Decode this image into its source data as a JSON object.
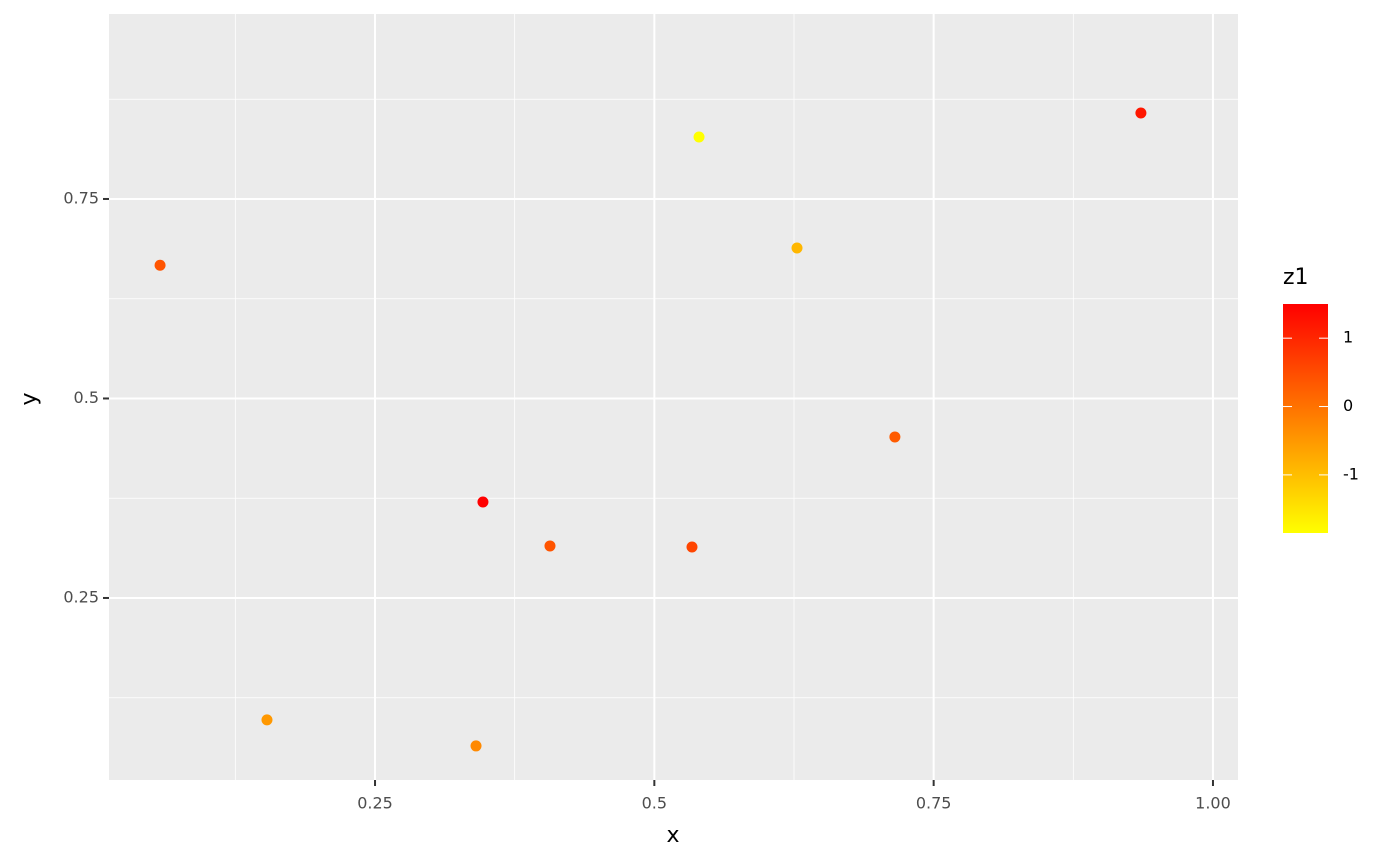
{
  "chart_data": {
    "type": "scatter",
    "x_label": "x",
    "y_label": "y",
    "x": [
      0.0576,
      0.1533,
      0.3404,
      0.3466,
      0.4066,
      0.5337,
      0.54,
      0.6277,
      0.7153,
      0.9355
    ],
    "values": [
      0.667,
      0.0972,
      0.0646,
      0.3703,
      0.3152,
      0.3139,
      0.8277,
      0.6886,
      0.4518,
      0.8578
    ],
    "z": [
      0.4,
      -0.5,
      -0.3,
      1.5,
      0.4,
      0.6,
      -1.85,
      -0.9,
      0.3,
      1.2
    ],
    "xlim": [
      0.0119,
      1.0224
    ],
    "ylim": [
      0.0219,
      0.9818
    ],
    "xticks": [
      0.25,
      0.5,
      0.75,
      {
        "value": 1,
        "label": "1.00"
      }
    ],
    "yticks": [
      0.25,
      0.5,
      0.75
    ],
    "grid": true,
    "minor_grid": true,
    "colorbar": {
      "title": "z1",
      "low": "#FFFF00",
      "high": "#FF0000",
      "lim": [
        -1.85,
        1.5
      ],
      "ticks": [
        1,
        0,
        -1
      ]
    }
  }
}
